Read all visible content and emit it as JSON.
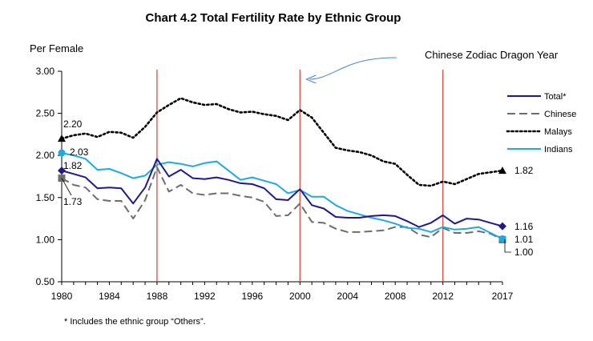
{
  "chart_data": {
    "type": "line",
    "title": "Chart 4.2  Total Fertility Rate by Ethnic Group",
    "ylabel": "Per Female",
    "footnote": "*  Includes the ethnic group “Others”.",
    "xlim": [
      1980,
      2017
    ],
    "ylim": [
      0.5,
      3.0
    ],
    "xticks": [
      "1980",
      "1984",
      "1988",
      "1992",
      "1996",
      "2000",
      "2004",
      "2008",
      "2012",
      "2017"
    ],
    "yticks": [
      "3.00",
      "2.50",
      "2.00",
      "1.50",
      "1.00",
      "0.50"
    ],
    "x": [
      1980,
      1981,
      1982,
      1983,
      1984,
      1985,
      1986,
      1987,
      1988,
      1989,
      1990,
      1991,
      1992,
      1993,
      1994,
      1995,
      1996,
      1997,
      1998,
      1999,
      2000,
      2001,
      2002,
      2003,
      2004,
      2005,
      2006,
      2007,
      2008,
      2009,
      2010,
      2011,
      2012,
      2013,
      2014,
      2015,
      2016,
      2017
    ],
    "series": [
      {
        "name": "Total*",
        "color": "#1f1a8c",
        "dash": "solid",
        "marker": "diamond",
        "end_label": "1.16",
        "start_label": "1.82",
        "values": [
          1.82,
          1.78,
          1.74,
          1.61,
          1.62,
          1.61,
          1.43,
          1.62,
          1.96,
          1.75,
          1.83,
          1.73,
          1.72,
          1.74,
          1.71,
          1.67,
          1.66,
          1.61,
          1.48,
          1.47,
          1.6,
          1.41,
          1.37,
          1.27,
          1.26,
          1.26,
          1.28,
          1.29,
          1.28,
          1.22,
          1.15,
          1.2,
          1.29,
          1.19,
          1.25,
          1.24,
          1.2,
          1.16
        ]
      },
      {
        "name": "Chinese",
        "color": "#6d6d6d",
        "dash": "long-dash",
        "marker": "square",
        "end_label": "1.00",
        "start_label": "1.73",
        "values": [
          1.73,
          1.65,
          1.62,
          1.48,
          1.46,
          1.46,
          1.25,
          1.47,
          1.86,
          1.57,
          1.65,
          1.55,
          1.53,
          1.55,
          1.55,
          1.52,
          1.5,
          1.45,
          1.28,
          1.29,
          1.43,
          1.21,
          1.2,
          1.13,
          1.09,
          1.09,
          1.1,
          1.11,
          1.15,
          1.15,
          1.06,
          1.03,
          1.14,
          1.08,
          1.08,
          1.1,
          1.07,
          1.0
        ]
      },
      {
        "name": "Malays",
        "color": "#000000",
        "dash": "dotted",
        "marker": "triangle",
        "end_label": "1.82",
        "start_label": "2.20",
        "values": [
          2.2,
          2.24,
          2.26,
          2.22,
          2.28,
          2.27,
          2.21,
          2.34,
          2.51,
          2.6,
          2.68,
          2.63,
          2.6,
          2.61,
          2.55,
          2.51,
          2.52,
          2.49,
          2.47,
          2.42,
          2.54,
          2.45,
          2.27,
          2.09,
          2.06,
          2.04,
          2.0,
          1.93,
          1.9,
          1.77,
          1.65,
          1.64,
          1.69,
          1.66,
          1.72,
          1.78,
          1.8,
          1.82
        ]
      },
      {
        "name": "Indians",
        "color": "#1ea9e3",
        "dash": "solid",
        "marker": "circle",
        "end_label": "1.01",
        "start_label": "2.03",
        "values": [
          2.03,
          2.0,
          1.96,
          1.83,
          1.84,
          1.79,
          1.73,
          1.76,
          1.89,
          1.92,
          1.9,
          1.87,
          1.91,
          1.93,
          1.82,
          1.71,
          1.74,
          1.7,
          1.66,
          1.55,
          1.59,
          1.51,
          1.51,
          1.41,
          1.34,
          1.3,
          1.26,
          1.23,
          1.19,
          1.14,
          1.13,
          1.09,
          1.15,
          1.12,
          1.13,
          1.15,
          1.08,
          1.01
        ]
      }
    ],
    "vlines": [
      1988,
      2000,
      2012
    ],
    "vline_color": "#e04a3f",
    "annotation": {
      "text": "Chinese Zodiac Dragon Year",
      "points_to": 2000
    },
    "legend": "right"
  }
}
